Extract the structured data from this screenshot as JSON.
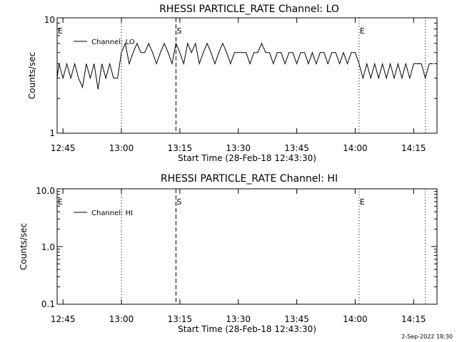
{
  "footer_timestamp": "2-Sep-2022 18:30",
  "chart_data": [
    {
      "type": "line",
      "title": "RHESSI PARTICLE_RATE Channel: LO",
      "xlabel": "Start Time (28-Feb-18 12:43:30)",
      "ylabel": "Counts/sec",
      "yscale": "log",
      "ylim": [
        1,
        10
      ],
      "ytick_labels": [
        "1",
        "10"
      ],
      "xlim": [
        "12:43:30",
        "14:21:00"
      ],
      "xtick_labels": [
        "12:45",
        "13:00",
        "13:15",
        "13:30",
        "13:45",
        "14:00",
        "14:15"
      ],
      "xtick_minutes": [
        1.5,
        16.5,
        31.5,
        46.5,
        61.5,
        76.5,
        91.5
      ],
      "legend_position": "top-left",
      "markers": [
        {
          "label": "E",
          "time": "12:43:30",
          "style": "none"
        },
        {
          "label": "",
          "time": "13:00",
          "style": "dotted"
        },
        {
          "label": "S",
          "time": "13:14",
          "style": "dashed"
        },
        {
          "label": "E",
          "time": "14:01",
          "style": "dotted"
        },
        {
          "label": "",
          "time": "14:18",
          "style": "dotted"
        }
      ],
      "series": [
        {
          "name": "Channel: LO",
          "x": [
            "12:43:30",
            "12:44",
            "12:45",
            "12:46",
            "12:47",
            "12:48",
            "12:49",
            "12:50",
            "12:51",
            "12:52",
            "12:53",
            "12:54",
            "12:55",
            "12:56",
            "12:57",
            "12:58",
            "12:59",
            "13:00",
            "13:01",
            "13:02",
            "13:03",
            "13:04",
            "13:05",
            "13:06",
            "13:07",
            "13:08",
            "13:09",
            "13:10",
            "13:11",
            "13:12",
            "13:13",
            "13:14",
            "13:15",
            "13:16",
            "13:17",
            "13:18",
            "13:19",
            "13:20",
            "13:21",
            "13:22",
            "13:23",
            "13:24",
            "13:25",
            "13:26",
            "13:27",
            "13:28",
            "13:29",
            "13:30",
            "13:31",
            "13:32",
            "13:33",
            "13:34",
            "13:35",
            "13:36",
            "13:37",
            "13:38",
            "13:39",
            "13:40",
            "13:41",
            "13:42",
            "13:43",
            "13:44",
            "13:45",
            "13:46",
            "13:47",
            "13:48",
            "13:49",
            "13:50",
            "13:51",
            "13:52",
            "13:53",
            "13:54",
            "13:55",
            "13:56",
            "13:57",
            "13:58",
            "13:59",
            "14:00",
            "14:01",
            "14:02",
            "14:03",
            "14:04",
            "14:05",
            "14:06",
            "14:07",
            "14:08",
            "14:09",
            "14:10",
            "14:11",
            "14:12",
            "14:13",
            "14:14",
            "14:15",
            "14:16",
            "14:17",
            "14:18",
            "14:19",
            "14:20"
          ],
          "values": [
            3,
            4,
            3,
            4,
            3,
            4,
            3,
            2.5,
            4,
            3,
            4,
            2.4,
            4,
            3,
            4,
            3,
            3,
            5,
            6,
            4,
            5,
            6,
            5,
            5,
            6,
            5,
            4,
            5,
            6,
            5,
            4,
            6,
            5,
            4,
            6,
            5,
            6,
            4,
            5,
            6,
            5,
            4,
            5,
            6,
            5,
            4,
            5,
            5,
            5,
            5,
            4,
            5,
            5,
            6,
            5,
            5,
            4,
            5,
            5,
            4,
            5,
            5,
            4,
            5,
            5,
            4,
            5,
            4,
            5,
            5,
            4,
            5,
            5,
            4,
            5,
            4,
            5,
            5,
            4,
            3,
            4,
            3,
            4,
            3,
            4,
            3,
            4,
            3,
            4,
            3,
            4,
            3,
            4,
            4,
            4,
            3,
            4,
            4
          ]
        }
      ]
    },
    {
      "type": "line",
      "title": "RHESSI PARTICLE_RATE Channel: HI",
      "xlabel": "Start Time (28-Feb-18 12:43:30)",
      "ylabel": "Counts/sec",
      "yscale": "log",
      "ylim": [
        0.1,
        10
      ],
      "ytick_labels": [
        "0.1",
        "1.0",
        "10.0"
      ],
      "xlim": [
        "12:43:30",
        "14:21:00"
      ],
      "xtick_labels": [
        "12:45",
        "13:00",
        "13:15",
        "13:30",
        "13:45",
        "14:00",
        "14:15"
      ],
      "xtick_minutes": [
        1.5,
        16.5,
        31.5,
        46.5,
        61.5,
        76.5,
        91.5
      ],
      "legend_position": "top-left",
      "markers": [
        {
          "label": "E",
          "time": "12:43:30",
          "style": "none"
        },
        {
          "label": "",
          "time": "13:00",
          "style": "dotted"
        },
        {
          "label": "S",
          "time": "13:14",
          "style": "dashed"
        },
        {
          "label": "E",
          "time": "14:01",
          "style": "dotted"
        },
        {
          "label": "",
          "time": "14:18",
          "style": "dotted"
        }
      ],
      "series": [
        {
          "name": "Channel: HI",
          "x": [],
          "values": []
        }
      ]
    }
  ]
}
